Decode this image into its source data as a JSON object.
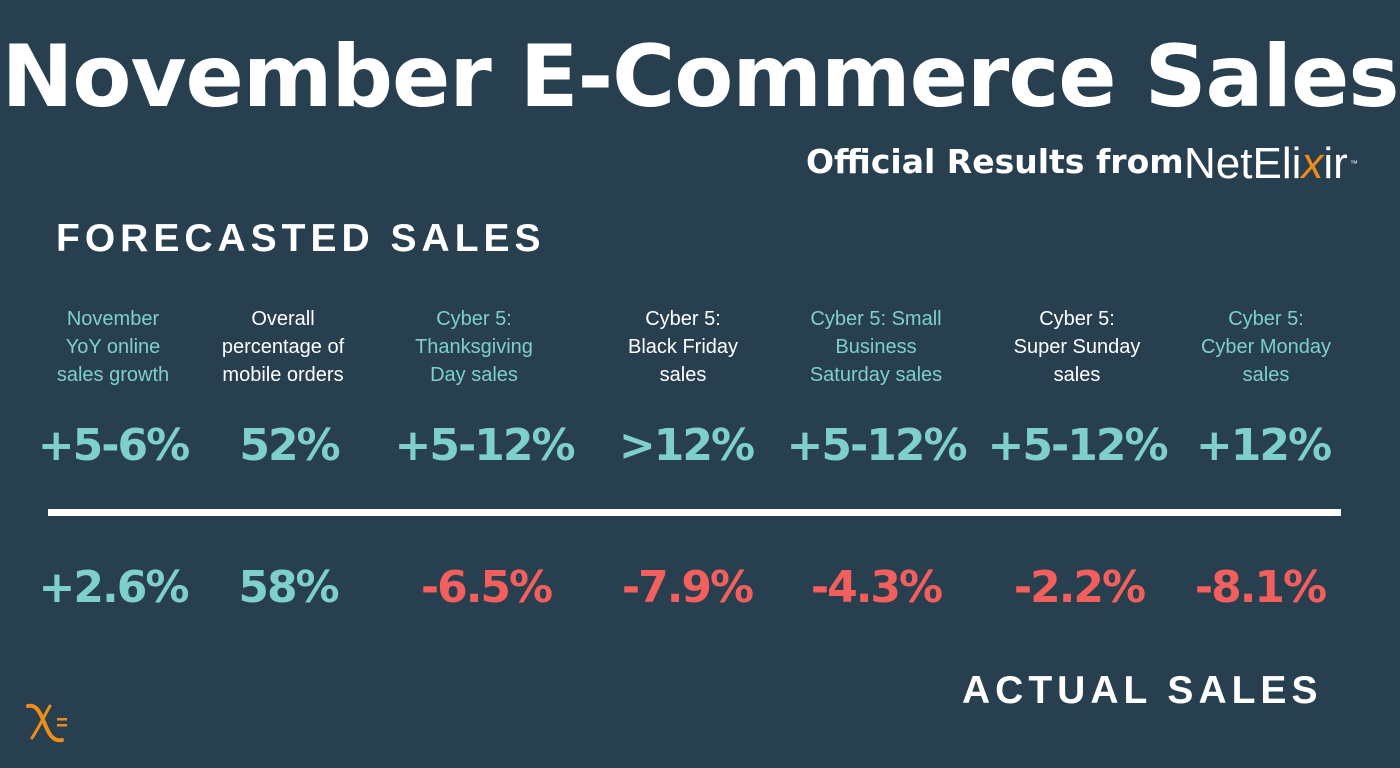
{
  "title": "November E-Commerce Sales",
  "subtitle": "Official Results from",
  "brand": {
    "prefix": "NetEli",
    "x": "x",
    "suffix": "ir",
    "tm": "™"
  },
  "forecast_heading": "FORECASTED SALES",
  "actual_heading": "ACTUAL SALES",
  "columns": [
    {
      "label": [
        "November",
        "YoY online",
        "sales growth"
      ],
      "forecast": "+5-6%",
      "actual": "+2.6%",
      "label_color": "teal",
      "actual_color": "teal"
    },
    {
      "label": [
        "Overall",
        "percentage of",
        "mobile orders"
      ],
      "forecast": "52%",
      "actual": "58%",
      "label_color": "white",
      "actual_color": "teal"
    },
    {
      "label": [
        "Cyber 5:",
        "Thanksgiving",
        "Day sales"
      ],
      "forecast": "+5-12%",
      "actual": "-6.5%",
      "label_color": "teal",
      "actual_color": "red"
    },
    {
      "label": [
        "Cyber 5:",
        "Black Friday",
        "sales"
      ],
      "forecast": ">12%",
      "actual": "-7.9%",
      "label_color": "white",
      "actual_color": "red"
    },
    {
      "label": [
        "Cyber 5: Small",
        "Business",
        "Saturday sales"
      ],
      "forecast": "+5-12%",
      "actual": "-4.3%",
      "label_color": "teal",
      "actual_color": "red"
    },
    {
      "label": [
        "Cyber 5:",
        "Super Sunday",
        "sales"
      ],
      "forecast": "+5-12%",
      "actual": "-2.2%",
      "label_color": "white",
      "actual_color": "red"
    },
    {
      "label": [
        "Cyber 5:",
        "Cyber Monday",
        "sales"
      ],
      "forecast": "+12%",
      "actual": "-8.1%",
      "label_color": "teal",
      "actual_color": "red"
    }
  ],
  "colors": {
    "background": "#283f4f",
    "teal": "#7ecfce",
    "red": "#f25f5c",
    "white": "#ffffff",
    "brand_orange": "#f08c1a"
  },
  "icons": {
    "corner_logo": "netelixir-x-equals-icon"
  }
}
